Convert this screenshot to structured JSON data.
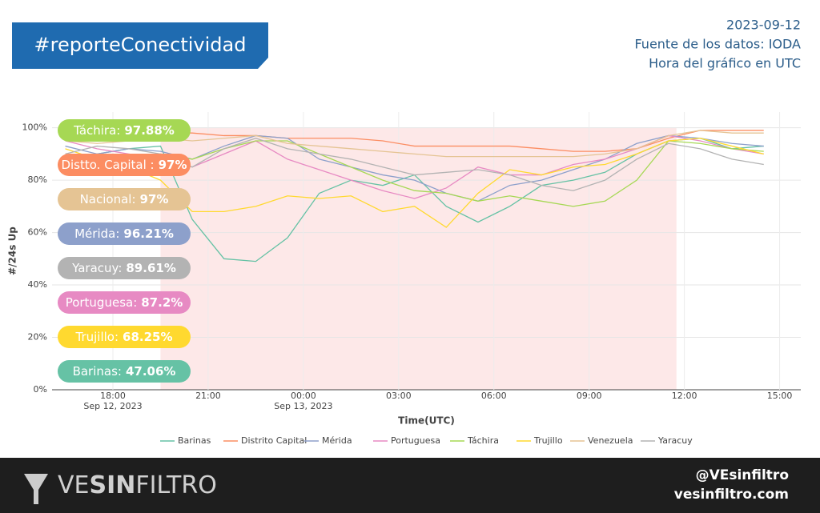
{
  "header": {
    "title": "#reporteConectividad",
    "date": "2023-09-12",
    "source": "Fuente de los datos: IODA",
    "timezone": "Hora del gráfico en UTC"
  },
  "badges": [
    {
      "label": "Táchira:",
      "value": "97.88%",
      "color": "#a6d854"
    },
    {
      "label": "Distto. Capital :",
      "value": "97%",
      "color": "#fc8d62"
    },
    {
      "label": "Nacional:",
      "value": "97%",
      "color": "#e5c494"
    },
    {
      "label": "Mérida:",
      "value": "96.21%",
      "color": "#8da0cb"
    },
    {
      "label": "Yaracuy:",
      "value": "89.61%",
      "color": "#b3b3b3"
    },
    {
      "label": "Portuguesa:",
      "value": "87.2%",
      "color": "#e78ac3"
    },
    {
      "label": "Trujillo:",
      "value": "68.25%",
      "color": "#ffd92f"
    },
    {
      "label": "Barinas:",
      "value": "47.06%",
      "color": "#66c2a5"
    }
  ],
  "chart_data": {
    "type": "line",
    "x_label": "Time(UTC)",
    "y_label": "#/24s Up",
    "x": [
      "2023-09-12T16:30Z",
      "2023-09-12T17:30Z",
      "2023-09-12T18:30Z",
      "2023-09-12T19:30Z",
      "2023-09-12T20:30Z",
      "2023-09-12T21:30Z",
      "2023-09-12T22:30Z",
      "2023-09-12T23:30Z",
      "2023-09-13T00:30Z",
      "2023-09-13T01:30Z",
      "2023-09-13T02:30Z",
      "2023-09-13T03:30Z",
      "2023-09-13T04:30Z",
      "2023-09-13T05:30Z",
      "2023-09-13T06:30Z",
      "2023-09-13T07:30Z",
      "2023-09-13T08:30Z",
      "2023-09-13T09:30Z",
      "2023-09-13T10:30Z",
      "2023-09-13T11:30Z",
      "2023-09-13T12:30Z",
      "2023-09-13T13:30Z",
      "2023-09-13T14:30Z"
    ],
    "xlim": [
      "2023-09-12T16:05Z",
      "2023-09-13T15:40Z"
    ],
    "xticks": [
      {
        "value": "2023-09-12T18:00Z",
        "label": "18:00",
        "date": "Sep 12, 2023"
      },
      {
        "value": "2023-09-12T21:00Z",
        "label": "21:00"
      },
      {
        "value": "2023-09-13T00:00Z",
        "label": "00:00",
        "date": "Sep 13, 2023"
      },
      {
        "value": "2023-09-13T03:00Z",
        "label": "03:00"
      },
      {
        "value": "2023-09-13T06:00Z",
        "label": "06:00"
      },
      {
        "value": "2023-09-13T09:00Z",
        "label": "09:00"
      },
      {
        "value": "2023-09-13T12:00Z",
        "label": "12:00"
      },
      {
        "value": "2023-09-13T15:00Z",
        "label": "15:00"
      }
    ],
    "ylim": [
      0,
      106
    ],
    "yticks": [
      {
        "value": 0,
        "label": "0%"
      },
      {
        "value": 20,
        "label": "20%"
      },
      {
        "value": 40,
        "label": "40%"
      },
      {
        "value": 60,
        "label": "60%"
      },
      {
        "value": 80,
        "label": "80%"
      },
      {
        "value": 100,
        "label": "100%"
      }
    ],
    "grid": true,
    "highlight_range": [
      "2023-09-12T19:30Z",
      "2023-09-13T11:45Z"
    ],
    "highlight_color": "#fde8e8",
    "series": [
      {
        "name": "Barinas",
        "color": "#66c2a5",
        "values": [
          87,
          90,
          92,
          93,
          65,
          50,
          49,
          58,
          75,
          80,
          78,
          82,
          70,
          64,
          70,
          78,
          80,
          83,
          90,
          95,
          96,
          92,
          93
        ]
      },
      {
        "name": "Distrito Capital",
        "color": "#fc8d62",
        "values": [
          97,
          98,
          98,
          98,
          98,
          97,
          97,
          96,
          96,
          96,
          95,
          93,
          93,
          93,
          93,
          92,
          91,
          91,
          92,
          96,
          99,
          99,
          99
        ]
      },
      {
        "name": "Mérida",
        "color": "#8da0cb",
        "values": [
          93,
          90,
          92,
          91,
          88,
          93,
          97,
          96,
          88,
          85,
          82,
          80,
          75,
          72,
          78,
          80,
          84,
          88,
          94,
          97,
          96,
          94,
          93
        ]
      },
      {
        "name": "Portuguesa",
        "color": "#e78ac3",
        "values": [
          95,
          92,
          90,
          88,
          85,
          90,
          95,
          88,
          84,
          80,
          76,
          73,
          77,
          85,
          82,
          82,
          86,
          88,
          92,
          97,
          95,
          92,
          90
        ]
      },
      {
        "name": "Táchira",
        "color": "#a6d854",
        "values": [
          82,
          85,
          88,
          90,
          88,
          92,
          95,
          95,
          90,
          85,
          80,
          76,
          75,
          72,
          74,
          72,
          70,
          72,
          80,
          95,
          94,
          92,
          91
        ]
      },
      {
        "name": "Trujillo",
        "color": "#ffd92f",
        "values": [
          92,
          88,
          85,
          80,
          68,
          68,
          70,
          74,
          73,
          74,
          68,
          70,
          62,
          75,
          84,
          82,
          85,
          86,
          90,
          95,
          96,
          93,
          90
        ]
      },
      {
        "name": "Venezuela",
        "color": "#e5c494",
        "values": [
          95,
          94,
          95,
          96,
          95,
          96,
          97,
          94,
          93,
          92,
          91,
          90,
          89,
          89,
          89,
          89,
          89,
          90,
          92,
          97,
          99,
          98,
          98
        ]
      },
      {
        "name": "Yaracuy",
        "color": "#b3b3b3",
        "values": [
          90,
          93,
          92,
          90,
          85,
          92,
          96,
          92,
          90,
          88,
          85,
          82,
          83,
          84,
          82,
          78,
          76,
          80,
          88,
          94,
          92,
          88,
          86
        ]
      }
    ]
  },
  "footer": {
    "brand_a": "VE",
    "brand_b": "SIN",
    "brand_c": "FILTRO",
    "handle": "@VEsinfiltro",
    "site": "vesinfiltro.com"
  }
}
